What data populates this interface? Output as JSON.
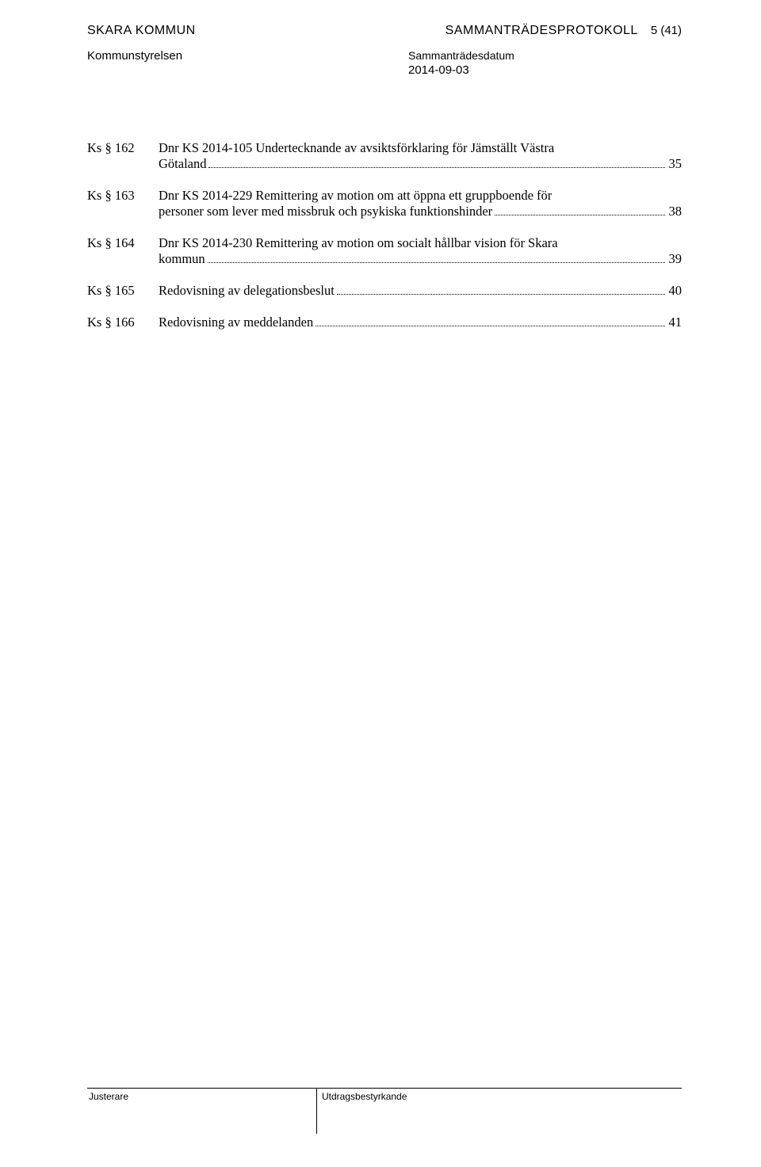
{
  "header": {
    "org_name": "SKARA KOMMUN",
    "org_sub": "Kommunstyrelsen",
    "doc_title": "SAMMANTRÄDESPROTOKOLL",
    "page_indicator": "5 (41)",
    "date_label": "Sammanträdesdatum",
    "date_value": "2014-09-03"
  },
  "toc": [
    {
      "label": "Ks § 162",
      "title_head": "Dnr KS 2014-105  Undertecknande av avsiktsförklaring för Jämställt Västra",
      "title_tail": "Götaland",
      "page": "35"
    },
    {
      "label": "Ks § 163",
      "title_head": "Dnr KS 2014-229  Remittering av motion om att öppna ett gruppboende för",
      "title_tail": "personer som lever med missbruk och psykiska funktionshinder",
      "page": "38"
    },
    {
      "label": "Ks § 164",
      "title_head": "Dnr KS 2014-230  Remittering av motion om socialt hållbar vision för Skara",
      "title_tail": "kommun",
      "page": "39"
    },
    {
      "label": "Ks § 165",
      "title_head": "",
      "title_tail": "Redovisning av delegationsbeslut",
      "page": "40"
    },
    {
      "label": "Ks § 166",
      "title_head": "",
      "title_tail": "Redovisning av meddelanden",
      "page": "41"
    }
  ],
  "footer": {
    "left": "Justerare",
    "right": "Utdragsbestyrkande"
  }
}
